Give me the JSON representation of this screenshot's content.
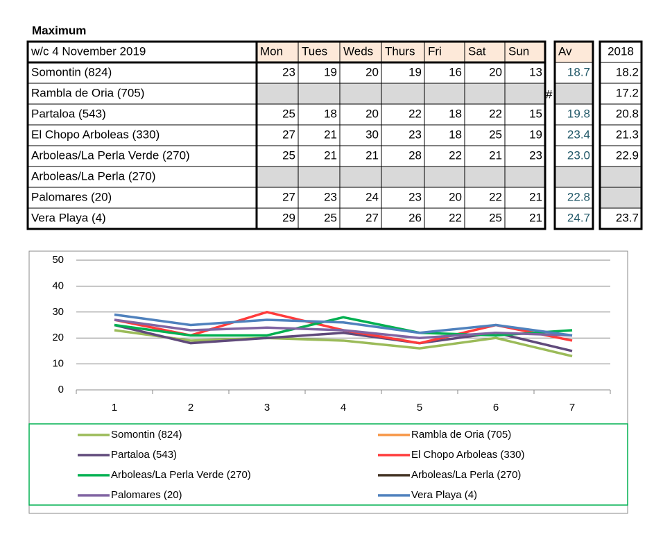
{
  "title": "Maximum",
  "table": {
    "header": [
      "w/c 4 November 2019",
      "Mon",
      "Tues",
      "Weds",
      "Thurs",
      "Fri",
      "Sat",
      "Sun",
      "Av",
      "2018"
    ],
    "marker": "#",
    "rows": [
      [
        "Somontin (824)",
        23,
        19,
        20,
        19,
        16,
        20,
        13,
        "18.7",
        "18.2"
      ],
      [
        "Rambla de Oria (705)",
        null,
        null,
        null,
        null,
        null,
        null,
        null,
        null,
        "17.2"
      ],
      [
        "Partaloa (543)",
        25,
        18,
        20,
        22,
        18,
        22,
        15,
        "19.8",
        "20.8"
      ],
      [
        "El Chopo  Arboleas (330)",
        27,
        21,
        30,
        23,
        18,
        25,
        19,
        "23.4",
        "21.3"
      ],
      [
        "Arboleas/La Perla Verde (270)",
        25,
        21,
        21,
        28,
        22,
        21,
        23,
        "23.0",
        "22.9"
      ],
      [
        "Arboleas/La Perla (270)",
        null,
        null,
        null,
        null,
        null,
        null,
        null,
        null,
        null
      ],
      [
        "Palomares (20)",
        27,
        23,
        24,
        23,
        20,
        22,
        21,
        "22.8",
        null
      ],
      [
        "Vera Playa (4)",
        29,
        25,
        27,
        26,
        22,
        25,
        21,
        "24.7",
        "23.7"
      ]
    ]
  },
  "chart_data": {
    "type": "line",
    "categories": [
      1,
      2,
      3,
      4,
      5,
      6,
      7
    ],
    "ylim": [
      0,
      50
    ],
    "yticks": [
      0,
      10,
      20,
      30,
      40,
      50
    ],
    "grid": true,
    "legend": "bottom",
    "series": [
      {
        "name": "Somontin (824)",
        "color": "#9bbb59",
        "values": [
          23,
          19,
          20,
          19,
          16,
          20,
          13
        ]
      },
      {
        "name": "Rambla de Oria (705)",
        "color": "#f79646",
        "values": [
          null,
          null,
          null,
          null,
          null,
          null,
          null
        ]
      },
      {
        "name": "Partaloa (543)",
        "color": "#604a7b",
        "values": [
          25,
          18,
          20,
          22,
          18,
          22,
          15
        ]
      },
      {
        "name": "El Chopo  Arboleas (330)",
        "color": "#ff3b3b",
        "values": [
          27,
          21,
          30,
          23,
          18,
          25,
          19
        ]
      },
      {
        "name": "Arboleas/La Perla Verde (270)",
        "color": "#00b050",
        "values": [
          25,
          21,
          21,
          28,
          22,
          21,
          23
        ]
      },
      {
        "name": "Arboleas/La Perla (270)",
        "color": "#403020",
        "values": [
          null,
          null,
          null,
          null,
          null,
          null,
          null
        ]
      },
      {
        "name": "Palomares (20)",
        "color": "#8064a2",
        "values": [
          27,
          23,
          24,
          23,
          20,
          22,
          21
        ]
      },
      {
        "name": "Vera Playa (4)",
        "color": "#4f81bd",
        "values": [
          29,
          25,
          27,
          26,
          22,
          25,
          21
        ]
      }
    ]
  }
}
